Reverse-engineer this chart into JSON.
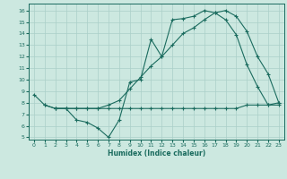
{
  "xlabel": "Humidex (Indice chaleur)",
  "bg_color": "#cce8e0",
  "line_color": "#1a6b5e",
  "grid_color": "#aacfc8",
  "xlim": [
    -0.5,
    23.5
  ],
  "ylim": [
    4.8,
    16.6
  ],
  "xticks": [
    0,
    1,
    2,
    3,
    4,
    5,
    6,
    7,
    8,
    9,
    10,
    11,
    12,
    13,
    14,
    15,
    16,
    17,
    18,
    19,
    20,
    21,
    22,
    23
  ],
  "yticks": [
    5,
    6,
    7,
    8,
    9,
    10,
    11,
    12,
    13,
    14,
    15,
    16
  ],
  "series1_x": [
    0,
    1,
    2,
    3,
    4,
    5,
    6,
    7,
    8,
    9,
    10,
    11,
    12,
    13,
    14,
    15,
    16,
    17,
    18,
    19,
    20,
    21,
    22,
    23
  ],
  "series1_y": [
    8.7,
    7.8,
    7.5,
    7.5,
    6.5,
    6.3,
    5.8,
    5.0,
    6.5,
    9.8,
    10.0,
    13.5,
    12.0,
    15.2,
    15.3,
    15.5,
    16.0,
    15.8,
    15.2,
    13.9,
    11.3,
    9.4,
    7.8,
    8.0
  ],
  "series2_x": [
    1,
    2,
    3,
    4,
    5,
    6,
    7,
    8,
    9,
    10,
    11,
    12,
    13,
    14,
    15,
    16,
    17,
    18,
    19,
    20,
    21,
    22,
    23
  ],
  "series2_y": [
    7.8,
    7.5,
    7.5,
    7.5,
    7.5,
    7.5,
    7.5,
    7.5,
    7.5,
    7.5,
    7.5,
    7.5,
    7.5,
    7.5,
    7.5,
    7.5,
    7.5,
    7.5,
    7.5,
    7.8,
    7.8,
    7.8,
    7.8
  ],
  "series3_x": [
    2,
    3,
    4,
    5,
    6,
    7,
    8,
    9,
    10,
    11,
    12,
    13,
    14,
    15,
    16,
    17,
    18,
    19,
    20,
    21,
    22,
    23
  ],
  "series3_y": [
    7.5,
    7.5,
    7.5,
    7.5,
    7.5,
    7.8,
    8.2,
    9.2,
    10.2,
    11.2,
    12.0,
    13.0,
    14.0,
    14.5,
    15.2,
    15.8,
    16.0,
    15.5,
    14.2,
    12.0,
    10.5,
    8.0
  ]
}
